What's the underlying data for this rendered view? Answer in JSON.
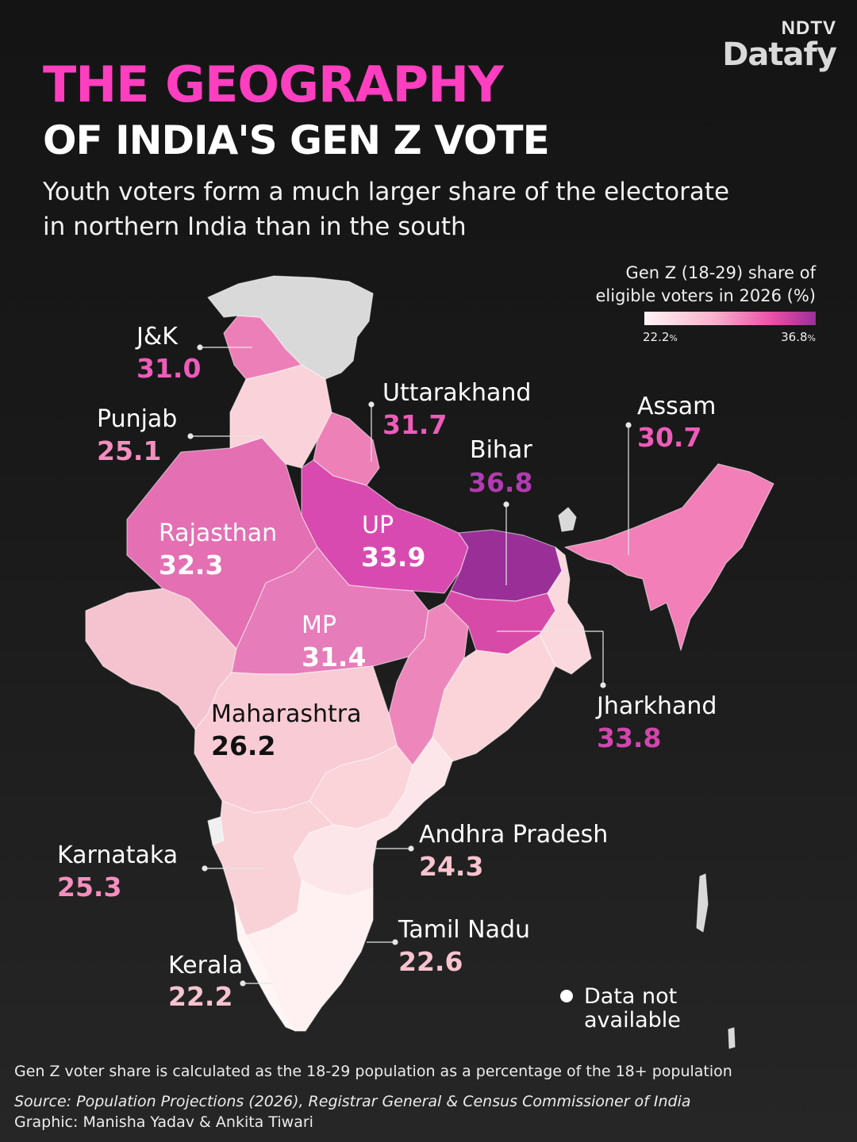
{
  "brand": {
    "top": "NDTV",
    "name": "Datafy"
  },
  "title": {
    "line1": "THE GEOGRAPHY",
    "line2": "OF INDIA'S GEN Z VOTE"
  },
  "subtitle": {
    "line1": "Youth voters form a much larger share of the electorate",
    "line2": "in northern India than in the south"
  },
  "legend": {
    "title_line1": "Gen Z (18-29) share of",
    "title_line2": "eligible voters in 2026 (%)",
    "min": "22.2",
    "max": "36.8",
    "unit": "%"
  },
  "colors": {
    "background": "#1a1a1a",
    "accent": "#ff3fc0",
    "na_fill": "#d9d9d9",
    "bihar_purple": "#9a2f98"
  },
  "states": [
    {
      "name": "J&K",
      "value": "31.0"
    },
    {
      "name": "Punjab",
      "value": "25.1"
    },
    {
      "name": "Uttarakhand",
      "value": "31.7"
    },
    {
      "name": "Bihar",
      "value": "36.8"
    },
    {
      "name": "Assam",
      "value": "30.7"
    },
    {
      "name": "Rajasthan",
      "value": "32.3"
    },
    {
      "name": "UP",
      "value": "33.9"
    },
    {
      "name": "MP",
      "value": "31.4"
    },
    {
      "name": "Maharashtra",
      "value": "26.2"
    },
    {
      "name": "Jharkhand",
      "value": "33.8"
    },
    {
      "name": "Andhra Pradesh",
      "value": "24.3"
    },
    {
      "name": "Karnataka",
      "value": "25.3"
    },
    {
      "name": "Tamil Nadu",
      "value": "22.6"
    },
    {
      "name": "Kerala",
      "value": "22.2"
    }
  ],
  "na_label": {
    "line1": "Data not",
    "line2": "available"
  },
  "footer": {
    "note": "Gen Z voter share is calculated as the 18-29 population as a percentage of the 18+ population",
    "source": "Source: Population Projections (2026), Registrar General & Census Commissioner of India",
    "credit": "Graphic: Manisha Yadav & Ankita Tiwari"
  }
}
